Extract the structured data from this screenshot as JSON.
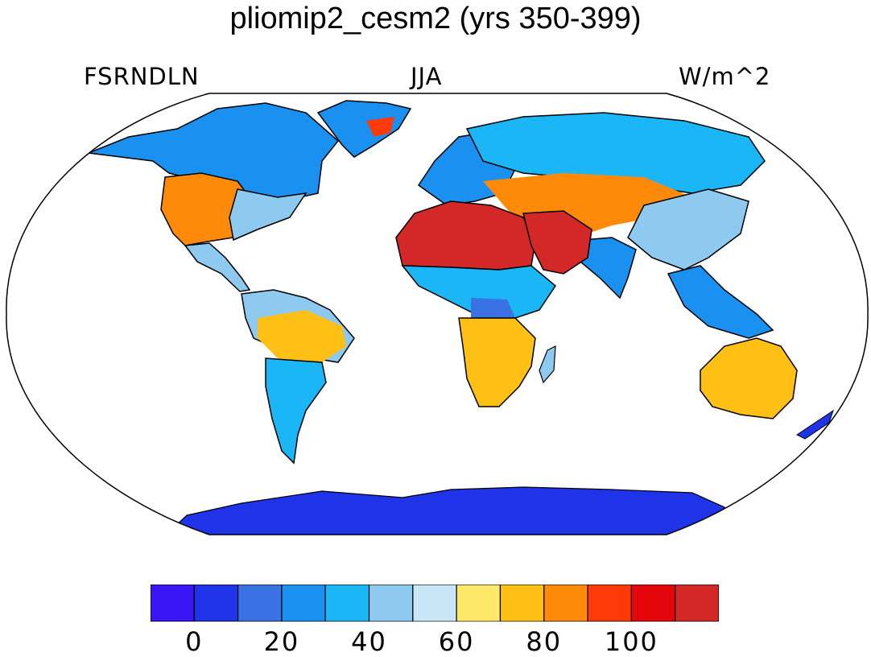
{
  "title": "pliomip2_cesm2 (yrs 350-399)",
  "left_label": "FSRNDLN",
  "center_label": "JJA",
  "right_label": "W/m^2",
  "colorbar": {
    "colors": [
      "#3b16f5",
      "#1f34e8",
      "#3a72e4",
      "#1a90f0",
      "#1ab6f5",
      "#8ec9ef",
      "#c9e6f6",
      "#fde86a",
      "#fec014",
      "#ff8a0a",
      "#ff3a06",
      "#e4060a",
      "#d42828"
    ],
    "tick_labels": [
      "0",
      "20",
      "40",
      "60",
      "80",
      "100"
    ],
    "tick_values": [
      0,
      20,
      40,
      60,
      80,
      100
    ],
    "levels": [
      0,
      10,
      20,
      30,
      40,
      50,
      60,
      70,
      80,
      90,
      100,
      110
    ]
  },
  "map": {
    "projection": "Robinson",
    "land_fill_regions": [
      {
        "name": "north-america-north",
        "color": "#1a90f0"
      },
      {
        "name": "north-america-east",
        "color": "#8ec9ef"
      },
      {
        "name": "north-america-west",
        "color": "#ff8a0a"
      },
      {
        "name": "greenland",
        "color": "#1a90f0"
      },
      {
        "name": "greenland-south",
        "color": "#ff3a06"
      },
      {
        "name": "central-america",
        "color": "#8ec9ef"
      },
      {
        "name": "south-america-north",
        "color": "#8ec9ef"
      },
      {
        "name": "amazon",
        "color": "#fec014"
      },
      {
        "name": "south-america-south",
        "color": "#1ab6f5"
      },
      {
        "name": "europe-north",
        "color": "#1a90f0"
      },
      {
        "name": "siberia",
        "color": "#1ab6f5"
      },
      {
        "name": "central-asia",
        "color": "#ff8a0a"
      },
      {
        "name": "sahara",
        "color": "#d42828"
      },
      {
        "name": "arabia",
        "color": "#d42828"
      },
      {
        "name": "sahel",
        "color": "#1ab6f5"
      },
      {
        "name": "central-africa",
        "color": "#3a72e4"
      },
      {
        "name": "southern-africa",
        "color": "#fec014"
      },
      {
        "name": "south-asia",
        "color": "#1a90f0"
      },
      {
        "name": "east-asia",
        "color": "#8ec9ef"
      },
      {
        "name": "southeast-asia",
        "color": "#1a90f0"
      },
      {
        "name": "australia",
        "color": "#fec014"
      },
      {
        "name": "antarctica",
        "color": "#1f34e8"
      }
    ]
  }
}
